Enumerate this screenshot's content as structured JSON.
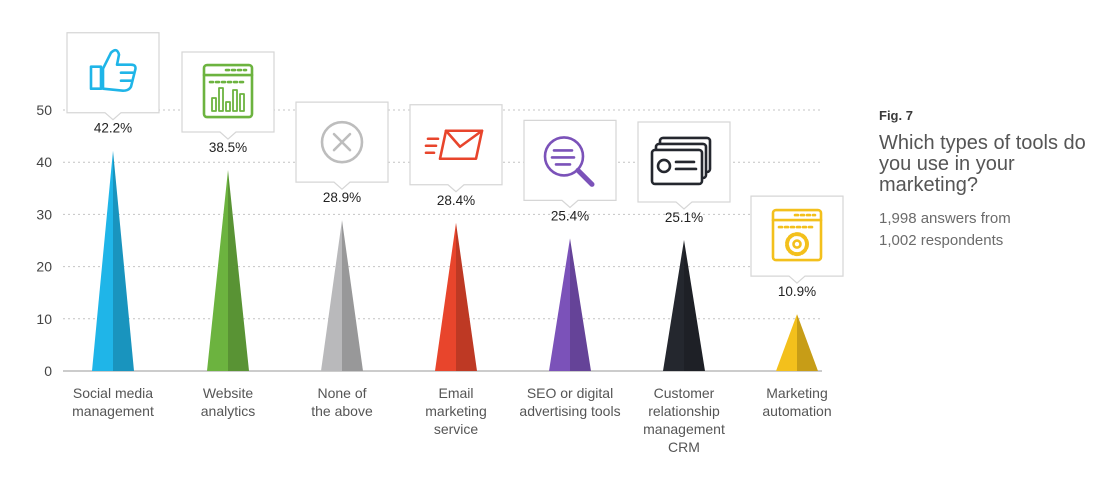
{
  "figure": {
    "label": "Fig. 7",
    "question": "Which types of tools do you use in your marketing?",
    "answers_line": "1,998 answers from",
    "respondents_line": "1,002 respondents"
  },
  "chart_data": {
    "type": "bar",
    "title": "Which types of tools do you use in your marketing?",
    "xlabel": "",
    "ylabel": "",
    "ylim": [
      0,
      50
    ],
    "yticks": [
      0,
      10,
      20,
      30,
      40,
      50
    ],
    "grid": true,
    "categories": [
      [
        "Social media",
        "management"
      ],
      [
        "Website",
        "analytics"
      ],
      [
        "None of",
        "the above"
      ],
      [
        "Email",
        "marketing",
        "service"
      ],
      [
        "SEO or digital",
        "advertising tools"
      ],
      [
        "Customer",
        "relationship",
        "management",
        "CRM"
      ],
      [
        "Marketing",
        "automation"
      ]
    ],
    "values": [
      42.2,
      38.5,
      28.9,
      28.4,
      25.4,
      25.1,
      10.9
    ],
    "value_labels": [
      "42.2%",
      "38.5%",
      "28.9%",
      "28.4%",
      "25.4%",
      "25.1%",
      "10.9%"
    ],
    "colors": [
      "#1fb5e8",
      "#6cb33f",
      "#b9b9bb",
      "#e8452c",
      "#7b52b9",
      "#24272e",
      "#f3c01c"
    ],
    "icons": [
      "thumbs-up-icon",
      "analytics-dashboard-icon",
      "close-circle-icon",
      "email-send-icon",
      "search-magnifier-icon",
      "contact-cards-icon",
      "automation-gear-icon"
    ]
  }
}
